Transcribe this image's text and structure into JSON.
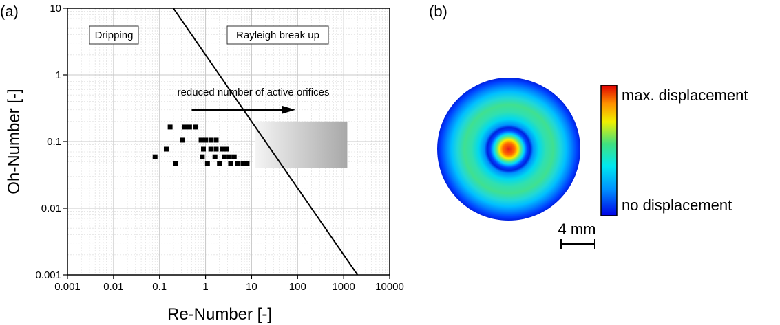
{
  "panels": {
    "a_label": "(a)",
    "b_label": "(b)"
  },
  "chart_data": [
    {
      "type": "scatter",
      "xlabel": "Re-Number [-]",
      "ylabel": "Oh-Number [-]",
      "x_scale": "log",
      "y_scale": "log",
      "xlim": [
        0.001,
        10000
      ],
      "ylim": [
        0.001,
        10
      ],
      "x_ticks": [
        "0.001",
        "0.01",
        "0.1",
        "1",
        "10",
        "100",
        "1000",
        "10000"
      ],
      "y_ticks": [
        "0.001",
        "0.01",
        "0.1",
        "1",
        "10"
      ],
      "grid": true,
      "regions": [
        "Dripping",
        "Rayleigh break up"
      ],
      "annotation": "reduced number of active orifices",
      "boundary_line": {
        "x": [
          0.2,
          2000
        ],
        "y": [
          10,
          0.001
        ]
      },
      "arrow": {
        "from": [
          0.5,
          0.3
        ],
        "to": [
          90,
          0.3
        ]
      },
      "shaded_region": {
        "x": [
          12,
          1200
        ],
        "y": [
          0.04,
          0.2
        ]
      },
      "series": [
        {
          "x": [
            0.17,
            0.35,
            0.45,
            0.6,
            0.32,
            0.8,
            1.0,
            1.3,
            1.7,
            0.14,
            0.9,
            1.3,
            1.7,
            2.3,
            2.9,
            0.08,
            0.85,
            1.6,
            2.6,
            3.3,
            4.2,
            0.22,
            1.1,
            2.0,
            3.5,
            5.0,
            6.5,
            8.0
          ],
          "y": [
            0.165,
            0.165,
            0.165,
            0.165,
            0.105,
            0.105,
            0.105,
            0.105,
            0.105,
            0.077,
            0.077,
            0.077,
            0.077,
            0.077,
            0.077,
            0.059,
            0.059,
            0.059,
            0.059,
            0.059,
            0.059,
            0.047,
            0.047,
            0.047,
            0.047,
            0.047,
            0.047,
            0.047
          ]
        }
      ]
    }
  ],
  "panel_b": {
    "colorbar_max_label": "max. displacement",
    "colorbar_min_label": "no displacement",
    "scale_bar_label": "4 mm",
    "colors": {
      "max": "#e31a1c",
      "yellow": "#ffe800",
      "green": "#40e07f",
      "cyan": "#00d4ff",
      "min": "#0033ff"
    }
  }
}
